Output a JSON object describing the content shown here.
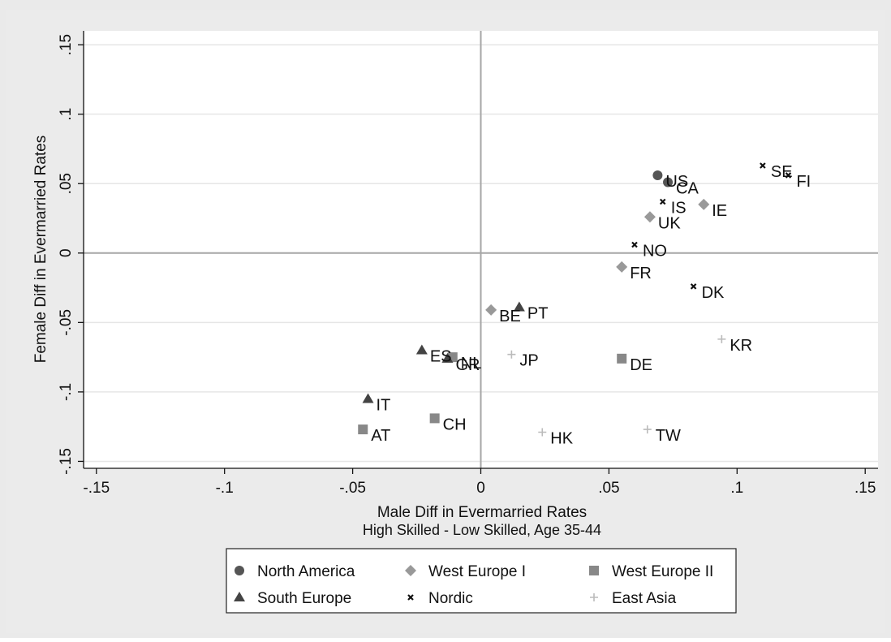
{
  "chart_data": {
    "type": "scatter",
    "xlabel": "Male Diff in Evermarried Rates",
    "xlabel2": "High Skilled - Low Skilled, Age 35-44",
    "ylabel": "Female Diff in Evermarried Rates",
    "xlim": [
      -0.155,
      0.155
    ],
    "ylim": [
      -0.155,
      0.16
    ],
    "xticks": [
      {
        "v": -0.15,
        "label": "-.15"
      },
      {
        "v": -0.1,
        "label": "-.1"
      },
      {
        "v": -0.05,
        "label": "-.05"
      },
      {
        "v": 0,
        "label": "0"
      },
      {
        "v": 0.05,
        "label": ".05"
      },
      {
        "v": 0.1,
        "label": ".1"
      },
      {
        "v": 0.15,
        "label": ".15"
      }
    ],
    "yticks": [
      {
        "v": -0.15,
        "label": "-.15"
      },
      {
        "v": -0.1,
        "label": "-.1"
      },
      {
        "v": -0.05,
        "label": "-.05"
      },
      {
        "v": 0,
        "label": "0"
      },
      {
        "v": 0.05,
        "label": ".05"
      },
      {
        "v": 0.1,
        "label": ".1"
      },
      {
        "v": 0.15,
        "label": ".15"
      }
    ],
    "grid": "horizontal",
    "reference_lines": {
      "x": 0,
      "y": 0
    },
    "legend_position": "bottom",
    "series": [
      {
        "name": "North America",
        "marker": "circle",
        "color": "#555555",
        "points": [
          {
            "label": "US",
            "x": 0.069,
            "y": 0.056
          },
          {
            "label": "CA",
            "x": 0.073,
            "y": 0.051
          }
        ]
      },
      {
        "name": "West Europe I",
        "marker": "diamond",
        "color": "#999999",
        "points": [
          {
            "label": "IE",
            "x": 0.087,
            "y": 0.035
          },
          {
            "label": "UK",
            "x": 0.066,
            "y": 0.026
          },
          {
            "label": "FR",
            "x": 0.055,
            "y": -0.01
          },
          {
            "label": "BE",
            "x": 0.004,
            "y": -0.041
          }
        ]
      },
      {
        "name": "West Europe II",
        "marker": "square",
        "color": "#888888",
        "points": [
          {
            "label": "NL",
            "x": -0.011,
            "y": -0.075
          },
          {
            "label": "DE",
            "x": 0.055,
            "y": -0.076
          },
          {
            "label": "CH",
            "x": -0.018,
            "y": -0.119
          },
          {
            "label": "AT",
            "x": -0.046,
            "y": -0.127
          }
        ]
      },
      {
        "name": "South Europe",
        "marker": "triangle",
        "color": "#444444",
        "points": [
          {
            "label": "PT",
            "x": 0.015,
            "y": -0.039
          },
          {
            "label": "ES",
            "x": -0.023,
            "y": -0.07
          },
          {
            "label": "GR",
            "x": -0.013,
            "y": -0.076
          },
          {
            "label": "IT",
            "x": -0.044,
            "y": -0.105
          }
        ]
      },
      {
        "name": "Nordic",
        "marker": "x",
        "color": "#111111",
        "points": [
          {
            "label": "SE",
            "x": 0.11,
            "y": 0.063
          },
          {
            "label": "FI",
            "x": 0.12,
            "y": 0.056
          },
          {
            "label": "IS",
            "x": 0.071,
            "y": 0.037
          },
          {
            "label": "NO",
            "x": 0.06,
            "y": 0.006
          },
          {
            "label": "DK",
            "x": 0.083,
            "y": -0.024
          }
        ]
      },
      {
        "name": "East Asia",
        "marker": "plus",
        "color": "#bbbbbb",
        "points": [
          {
            "label": "KR",
            "x": 0.094,
            "y": -0.062
          },
          {
            "label": "JP",
            "x": 0.012,
            "y": -0.073
          },
          {
            "label": "TW",
            "x": 0.065,
            "y": -0.127
          },
          {
            "label": "HK",
            "x": 0.024,
            "y": -0.129
          }
        ]
      }
    ]
  }
}
